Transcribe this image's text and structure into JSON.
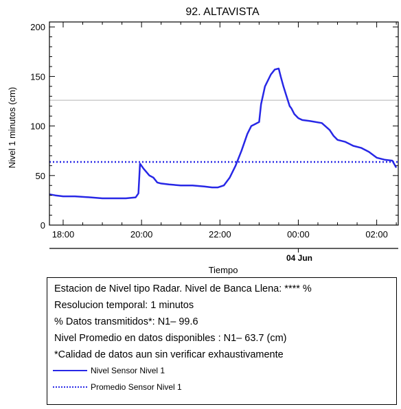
{
  "chart_data": {
    "type": "line",
    "title": "92. ALTAVISTA",
    "ylabel": "Nivel 1 minutos (cm)",
    "xlabel": "Tiempo",
    "ylim": [
      0,
      205
    ],
    "yticks": [
      0,
      50,
      100,
      150,
      200
    ],
    "xlim": [
      17.65,
      26.55
    ],
    "xticks": [
      {
        "value": 18,
        "label": "18:00"
      },
      {
        "value": 20,
        "label": "20:00"
      },
      {
        "value": 22,
        "label": "22:00"
      },
      {
        "value": 24,
        "label": "00:00"
      },
      {
        "value": 26,
        "label": "02:00"
      }
    ],
    "date_label": "04 Jun",
    "reference_line": {
      "y": 126,
      "color": "#cccccc"
    },
    "series": [
      {
        "name": "Nivel Sensor Nivel 1",
        "style": "solid",
        "color": "#2727e6",
        "x": [
          17.65,
          17.8,
          18.0,
          18.3,
          18.7,
          19.0,
          19.3,
          19.6,
          19.85,
          19.92,
          19.96,
          20.05,
          20.2,
          20.3,
          20.4,
          20.5,
          20.7,
          21.0,
          21.3,
          21.6,
          21.8,
          21.95,
          22.1,
          22.25,
          22.4,
          22.55,
          22.7,
          22.8,
          22.9,
          22.95,
          23.0,
          23.05,
          23.15,
          23.3,
          23.4,
          23.5,
          23.55,
          23.62,
          23.7,
          23.78,
          23.82,
          23.9,
          24.0,
          24.1,
          24.3,
          24.6,
          24.8,
          24.9,
          25.0,
          25.2,
          25.4,
          25.6,
          25.8,
          26.0,
          26.2,
          26.4,
          26.5
        ],
        "values": [
          31,
          30,
          29,
          29,
          28,
          27,
          27,
          27,
          28,
          32,
          62,
          57,
          50,
          48,
          43,
          42,
          41,
          40,
          40,
          39,
          38,
          38,
          40,
          48,
          60,
          75,
          92,
          100,
          102,
          103,
          104,
          122,
          140,
          152,
          157,
          158,
          150,
          140,
          130,
          120,
          118,
          112,
          108,
          106,
          105,
          103,
          96,
          90,
          86,
          84,
          80,
          78,
          74,
          68,
          66,
          65,
          58
        ]
      },
      {
        "name": "Promedio Sensor Nivel 1",
        "style": "dotted",
        "color": "#2727e6",
        "x": [
          17.65,
          26.55
        ],
        "values": [
          63.7,
          63.7
        ]
      }
    ]
  },
  "legend": {
    "lines": [
      "Estacion de Nivel tipo Radar. Nivel de Banca Llena: **** %",
      "Resolucion temporal: 1 minutos",
      "% Datos transmitidos*: N1– 99.6",
      "Nivel Promedio en datos disponibles : N1– 63.7 (cm)",
      "*Calidad de datos aun sin verificar exhaustivamente"
    ],
    "series_labels": [
      "Nivel Sensor Nivel 1",
      "Promedio Sensor Nivel 1"
    ]
  }
}
